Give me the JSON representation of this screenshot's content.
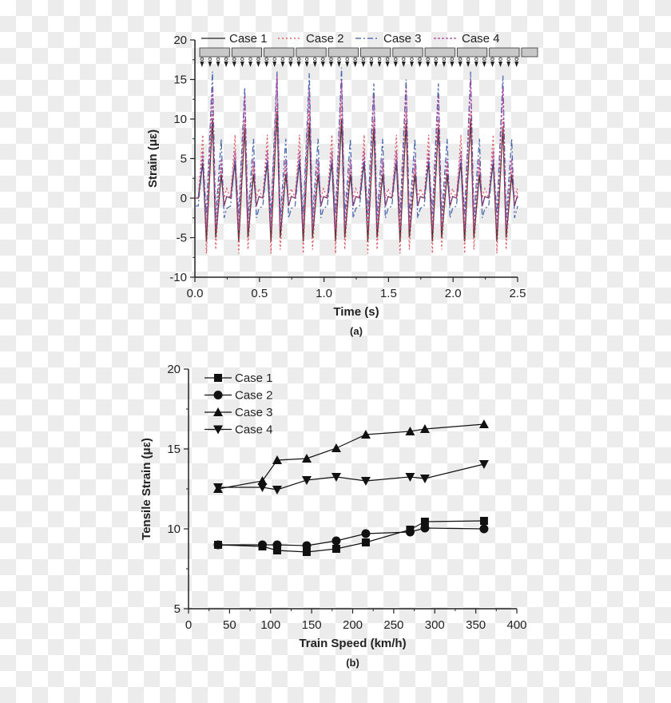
{
  "chart_data": [
    {
      "type": "line",
      "panel_label": "(a)",
      "xlabel": "Time (s)",
      "ylabel": "Strain (με)",
      "xlim": [
        0,
        2.5
      ],
      "ylim": [
        -10,
        20
      ],
      "xticks": [
        "0.0",
        "0.5",
        "1.0",
        "1.5",
        "2.0",
        "2.5"
      ],
      "yticks": [
        "-10",
        "-5",
        "0",
        "5",
        "10",
        "15",
        "20"
      ],
      "legend_position": "top",
      "peak_times": [
        0.136,
        0.386,
        0.636,
        0.886,
        1.136,
        1.386,
        1.636,
        1.886,
        2.136,
        2.386
      ],
      "pattern_offsets": [
        -0.11,
        -0.075,
        -0.047,
        0,
        0.025,
        0.068,
        0.09
      ],
      "series": [
        {
          "name": "Case 1",
          "color": "#222222",
          "dash": "",
          "pattern": [
            0,
            4.5,
            -5.5,
            0,
            -5,
            3,
            -1
          ],
          "main_peaks": [
            10,
            9,
            11,
            9.5,
            10,
            9,
            9.5,
            9,
            10,
            9
          ]
        },
        {
          "name": "Case 2",
          "color": "#e0404a",
          "dash": "2,3",
          "pattern": [
            0,
            8,
            -7,
            0,
            -6.5,
            4,
            0
          ],
          "main_peaks": [
            11,
            10,
            12,
            11,
            12,
            10,
            11,
            10,
            11,
            10
          ]
        },
        {
          "name": "Case 3",
          "color": "#3a5aa8",
          "dash": "7,3,2,3",
          "pattern": [
            -1,
            5,
            -2,
            0,
            -2.5,
            7.5,
            -2.5
          ],
          "main_peaks": [
            16,
            14,
            16,
            15.8,
            16.5,
            14.5,
            15,
            14.5,
            16,
            15.5
          ]
        },
        {
          "name": "Case 4",
          "color": "#b0409a",
          "dash": "3,2",
          "pattern": [
            0,
            6,
            -4,
            0,
            -4,
            5,
            -1
          ],
          "main_peaks": [
            14,
            13,
            15.5,
            14,
            15,
            13,
            14,
            13,
            15,
            14
          ]
        }
      ]
    },
    {
      "type": "line",
      "panel_label": "(b)",
      "xlabel": "Train Speed (km/h)",
      "ylabel": "Tensile Strain (με)",
      "xlim": [
        0,
        400
      ],
      "ylim": [
        5,
        20
      ],
      "xticks": [
        "0",
        "50",
        "100",
        "150",
        "200",
        "250",
        "300",
        "350",
        "400"
      ],
      "yticks": [
        "5",
        "10",
        "15",
        "20"
      ],
      "legend_position": "top-left",
      "x": [
        36,
        90,
        108,
        144,
        180,
        216,
        270,
        288,
        360
      ],
      "series": [
        {
          "name": "Case 1",
          "marker": "square",
          "values": [
            9.0,
            8.9,
            8.65,
            8.55,
            8.75,
            9.15,
            9.95,
            10.45,
            10.5
          ]
        },
        {
          "name": "Case 2",
          "marker": "circle",
          "values": [
            9.0,
            9.0,
            9.0,
            8.95,
            9.25,
            9.7,
            9.8,
            10.05,
            10.0
          ]
        },
        {
          "name": "Case 3",
          "marker": "triangle-up",
          "values": [
            12.5,
            13.0,
            14.3,
            14.4,
            15.05,
            15.9,
            16.1,
            16.25,
            16.55
          ]
        },
        {
          "name": "Case 4",
          "marker": "triangle-down",
          "values": [
            12.6,
            12.6,
            12.45,
            13.05,
            13.25,
            13.0,
            13.25,
            13.15,
            14.05
          ]
        }
      ]
    }
  ]
}
